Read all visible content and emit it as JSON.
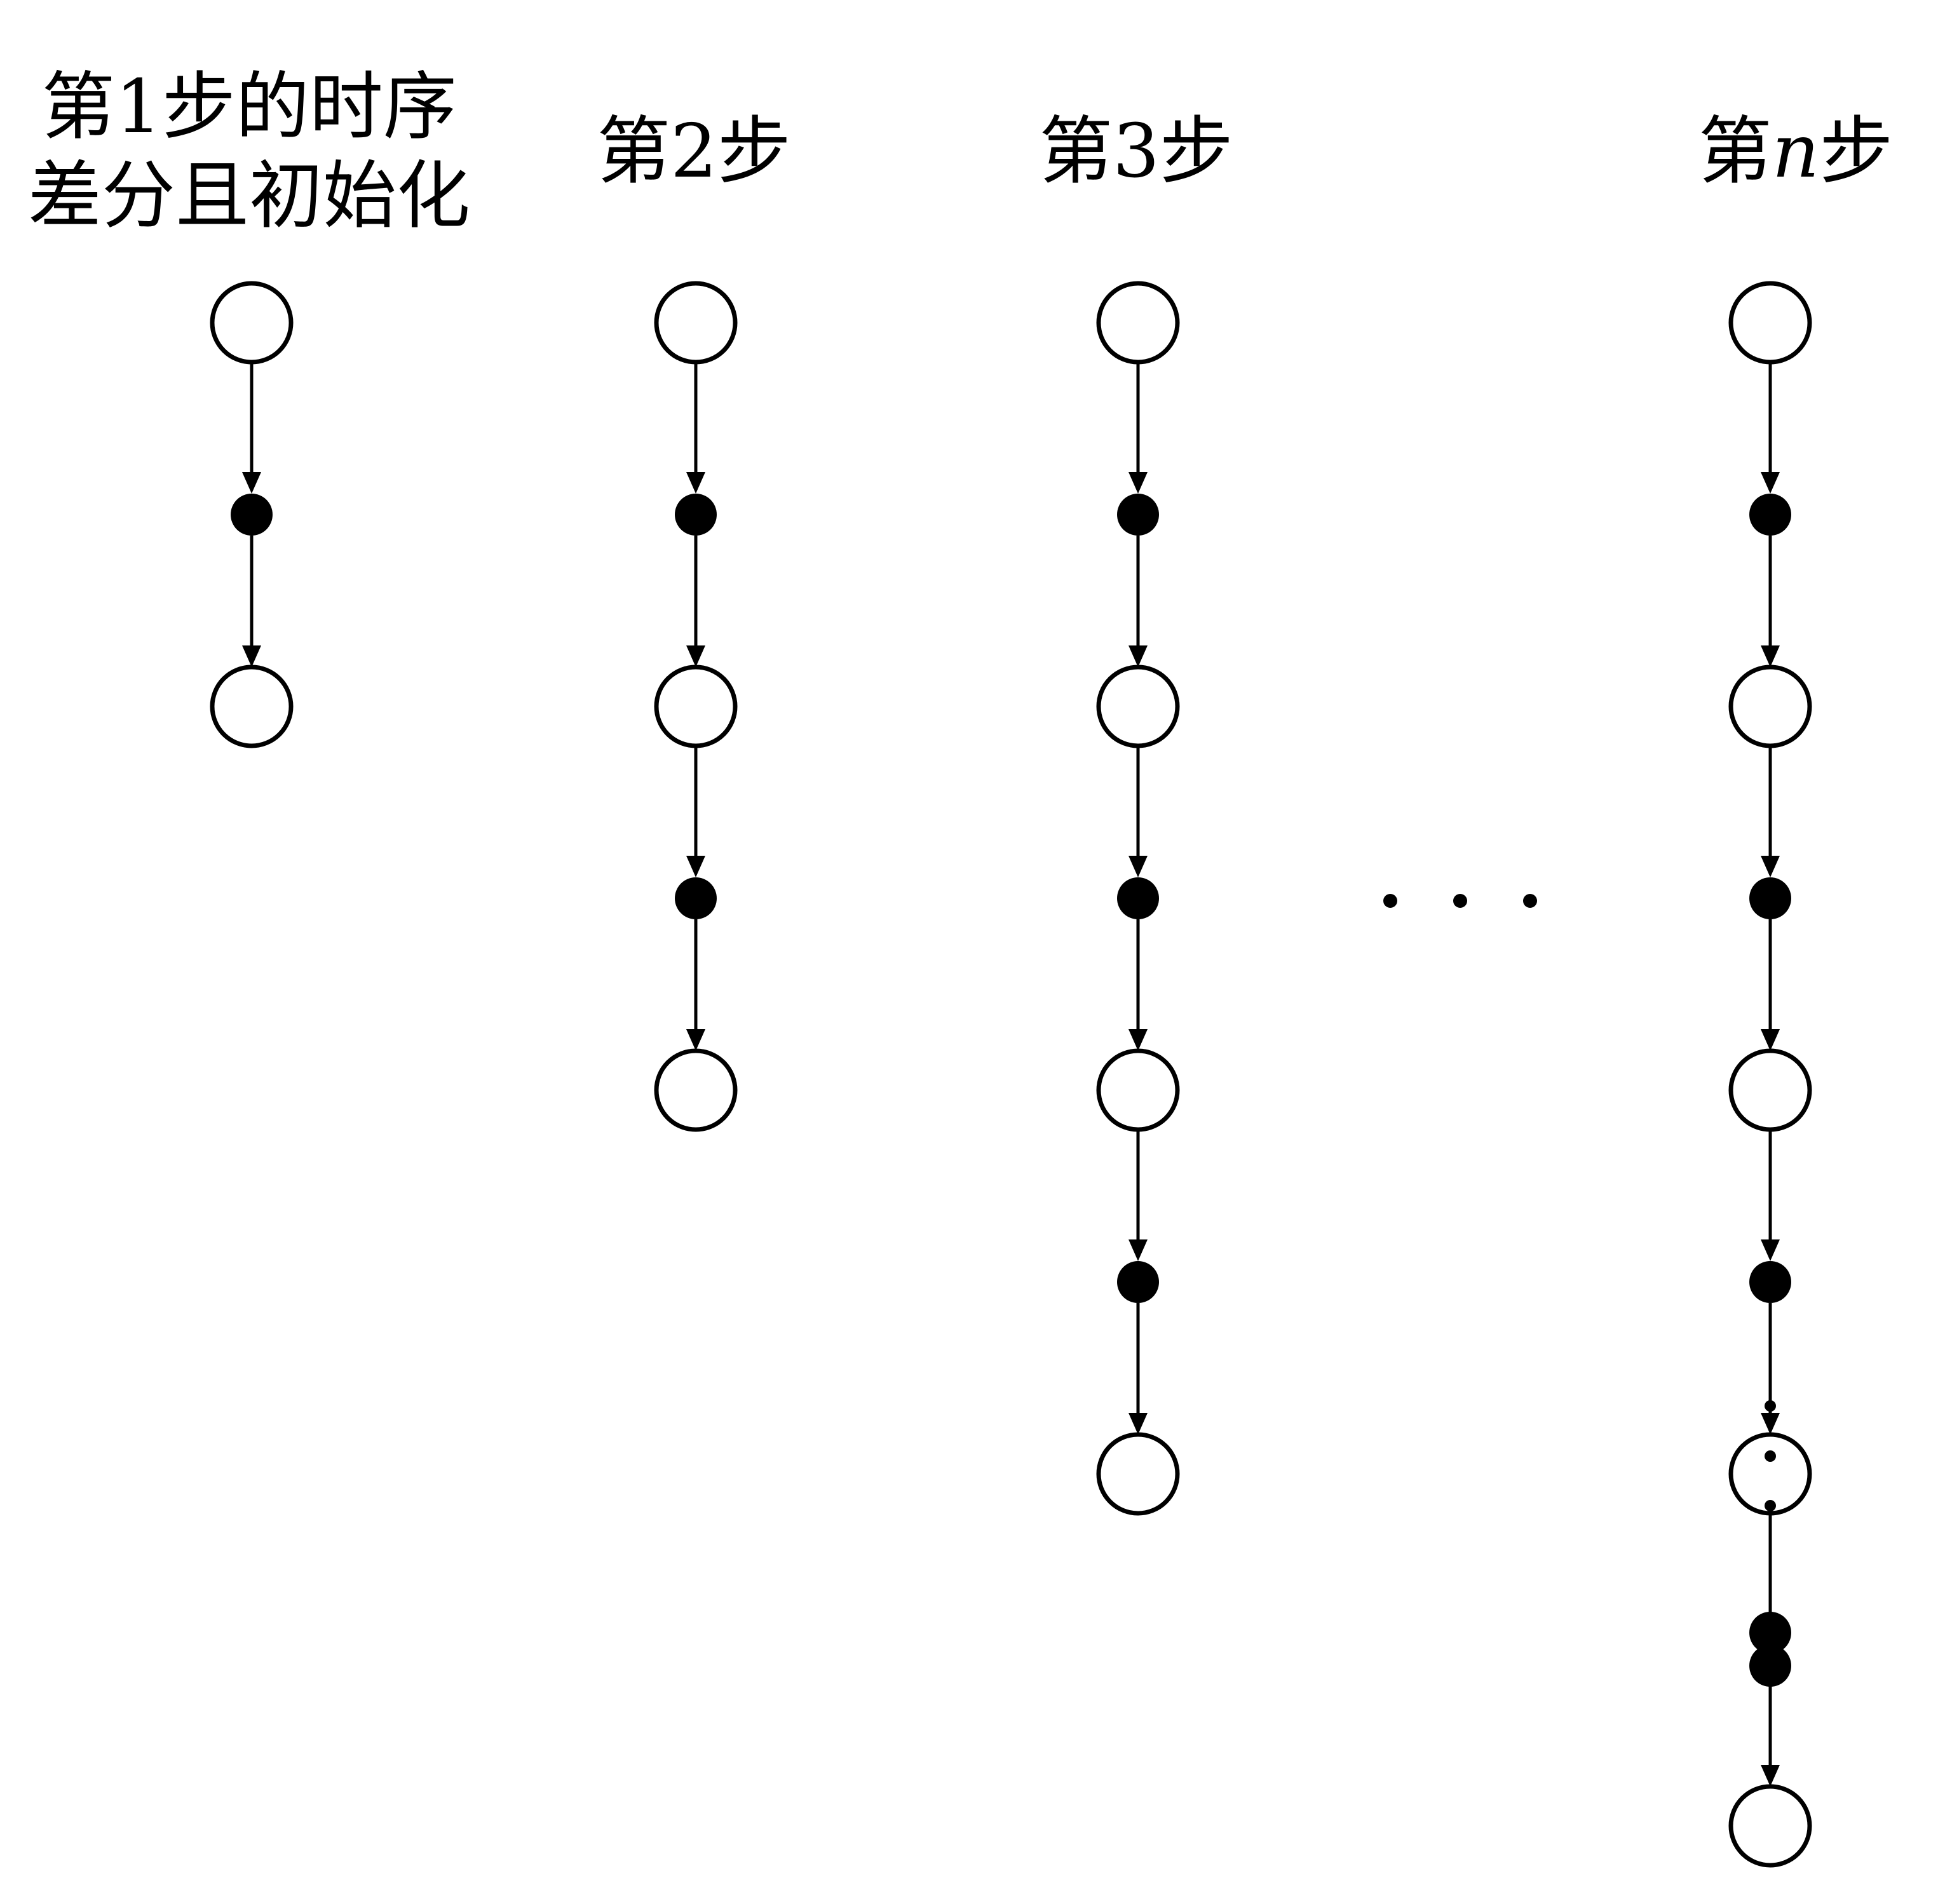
{
  "steps": [
    {
      "title_lines": [
        "第1步的时序",
        "差分且初始化"
      ],
      "pairs": 1
    },
    {
      "title_prefix": "第",
      "title_var": "2",
      "title_suffix": "步",
      "pairs": 2
    },
    {
      "title_prefix": "第",
      "title_var": "3",
      "title_suffix": "步",
      "pairs": 3
    },
    {
      "title_prefix": "第",
      "title_var": "n",
      "title_var_italic": true,
      "title_suffix": "步",
      "pairs": 4,
      "elided": true
    }
  ],
  "colors": {
    "stroke": "#000000",
    "fill_open": "#ffffff",
    "fill_solid": "#000000"
  }
}
